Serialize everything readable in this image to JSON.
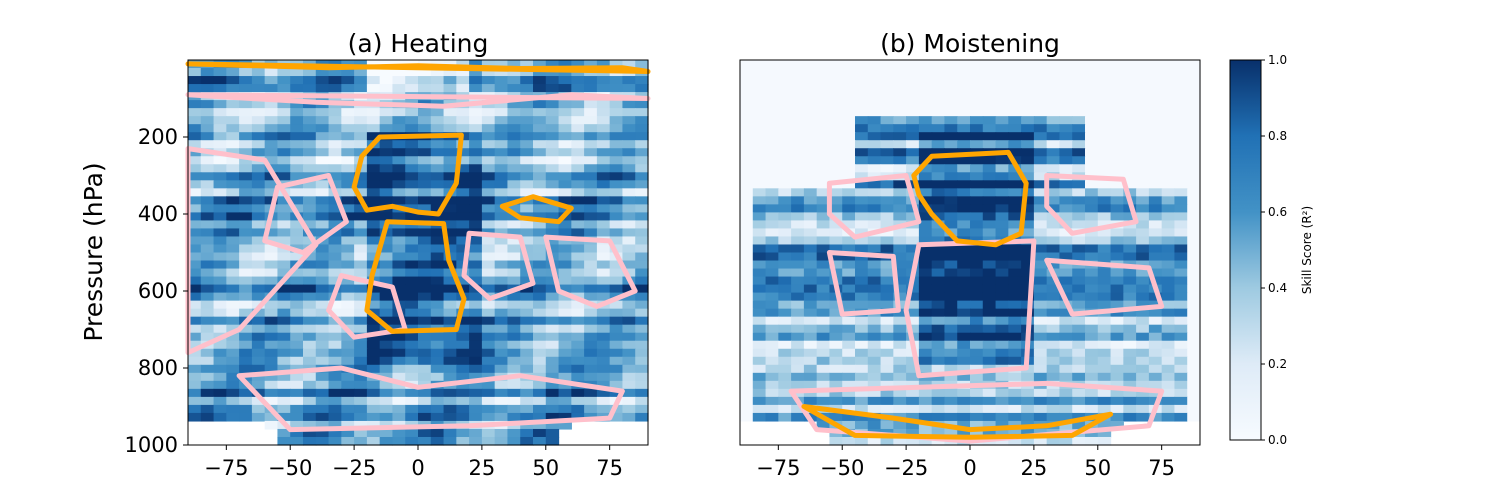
{
  "colors": {
    "cmap_low": "#f7fbff",
    "cmap_mid": "#6baed6",
    "cmap_high": "#08306b",
    "contour_high": "#ffa500",
    "contour_mid": "#ffc0cb"
  },
  "chart_data": [
    {
      "type": "heatmap",
      "title": "(a) Heating",
      "xlabel": "",
      "ylabel": "Pressure (hPa)",
      "xlim": [
        -90,
        90
      ],
      "ylim": [
        1000,
        0
      ],
      "xticks": [
        -75,
        -50,
        -25,
        0,
        25,
        50,
        75
      ],
      "yticks": [
        200,
        400,
        600,
        800,
        1000
      ],
      "contour_levels": [
        0.5,
        0.8
      ],
      "z_range": [
        0.0,
        1.0
      ]
    },
    {
      "type": "heatmap",
      "title": "(b) Moistening",
      "xlabel": "",
      "ylabel": "",
      "xlim": [
        -90,
        90
      ],
      "ylim": [
        1000,
        0
      ],
      "xticks": [
        -75,
        -50,
        -25,
        0,
        25,
        50,
        75
      ],
      "yticks": [],
      "contour_levels": [
        0.5,
        0.8
      ],
      "z_range": [
        0.0,
        1.0
      ]
    }
  ],
  "colorbar": {
    "label": "Skill Score (R²)",
    "ticks": [
      "0.0",
      "0.2",
      "0.4",
      "0.6",
      "0.8",
      "1.0"
    ],
    "range": [
      0.0,
      1.0
    ]
  }
}
